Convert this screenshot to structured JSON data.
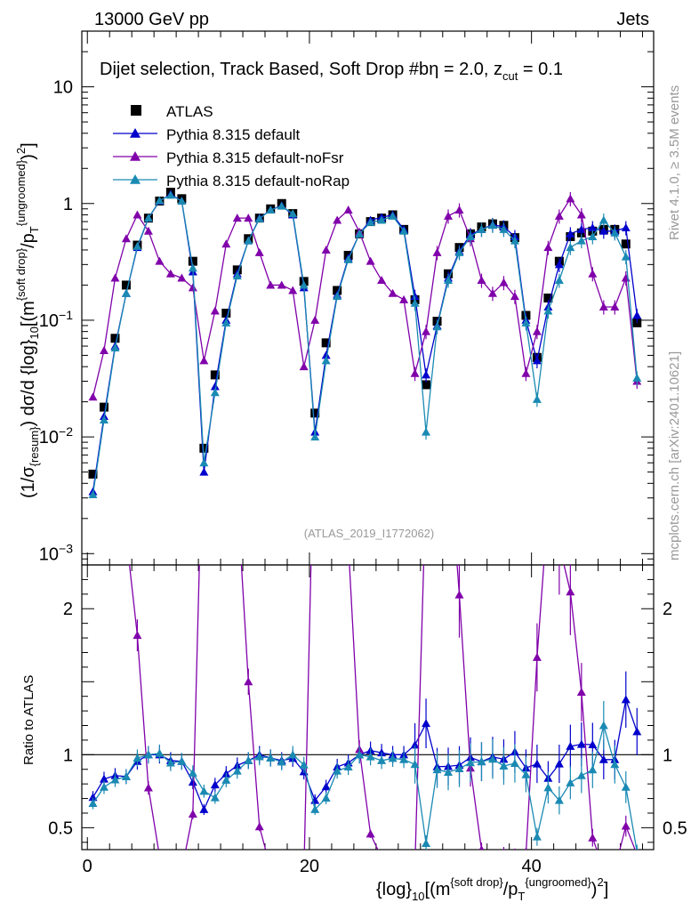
{
  "header": {
    "energy_label": "13000 GeV pp",
    "process_label": "Jets"
  },
  "side_labels": {
    "rivet": "Rivet 4.1.0, ≥ 3.5M events",
    "mcplots": "mcplots.cern.ch [arXiv:2401.10621]"
  },
  "chart_data": {
    "type": "scatter",
    "title": "Dijet selection, Track Based, Soft Drop #b",
    "title_suffix": "η = 2.0, z",
    "title_sub": "cut",
    "title_tail": " = 0.1",
    "analysis_id": "(ATLAS_2019_I1772062)",
    "ylabel_main": "(1/σ_{resum}) dσ/d {log}_{10}[(m^{soft drop}/p_T^{ungroomed})^2]",
    "ylabel_ratio": "Ratio to ATLAS",
    "xlabel": "{log}_{10}[(m^{soft drop}/p_T^{ungroomed})^2]",
    "xlim": [
      -0.5,
      51
    ],
    "ylim_main": [
      0.0008,
      30
    ],
    "ylim_ratio": [
      0.35,
      2.3
    ],
    "x_ticks": [
      "0",
      "20",
      "40"
    ],
    "y_ticks_main": [
      "10^-3",
      "10^-2",
      "10^-1",
      "1",
      "10"
    ],
    "y_ticks_ratio": [
      "0.5",
      "1",
      "2"
    ],
    "x": [
      0.5,
      1.5,
      2.5,
      3.5,
      4.5,
      5.5,
      6.5,
      7.5,
      8.5,
      9.5,
      10.5,
      11.5,
      12.5,
      13.5,
      14.5,
      15.5,
      16.5,
      17.5,
      18.5,
      19.5,
      20.5,
      21.5,
      22.5,
      23.5,
      24.5,
      25.5,
      26.5,
      27.5,
      28.5,
      29.5,
      30.5,
      31.5,
      32.5,
      33.5,
      34.5,
      35.5,
      36.5,
      37.5,
      38.5,
      39.5,
      40.5,
      41.5,
      42.5,
      43.5,
      44.5,
      45.5,
      46.5,
      47.5,
      48.5,
      49.5
    ],
    "series": [
      {
        "name": "ATLAS",
        "color": "#000000",
        "marker": "square",
        "values": [
          0.0048,
          0.018,
          0.07,
          0.2,
          0.44,
          0.75,
          1.05,
          1.25,
          1.1,
          0.32,
          0.008,
          0.034,
          0.115,
          0.27,
          0.5,
          0.75,
          0.9,
          1.0,
          0.82,
          0.215,
          0.016,
          0.064,
          0.18,
          0.36,
          0.55,
          0.7,
          0.75,
          0.8,
          0.6,
          0.15,
          0.028,
          0.098,
          0.25,
          0.42,
          0.55,
          0.63,
          0.67,
          0.65,
          0.51,
          0.11,
          0.048,
          0.155,
          0.32,
          0.52,
          0.56,
          0.58,
          0.6,
          0.6,
          0.45,
          0.095
        ]
      },
      {
        "name": "Pythia 8.315 default",
        "color": "#0000cc",
        "marker": "triangle",
        "values": [
          0.0034,
          0.015,
          0.06,
          0.17,
          0.42,
          0.75,
          1.05,
          1.2,
          1.05,
          0.26,
          0.005,
          0.027,
          0.1,
          0.25,
          0.48,
          0.75,
          0.88,
          0.96,
          0.8,
          0.19,
          0.011,
          0.05,
          0.165,
          0.34,
          0.55,
          0.72,
          0.76,
          0.8,
          0.6,
          0.16,
          0.034,
          0.09,
          0.23,
          0.39,
          0.54,
          0.6,
          0.66,
          0.63,
          0.52,
          0.1,
          0.045,
          0.13,
          0.3,
          0.55,
          0.6,
          0.62,
          0.58,
          0.58,
          0.62,
          0.11
        ]
      },
      {
        "name": "Pythia 8.315 default-noFsr",
        "color": "#8000aa",
        "marker": "triangle",
        "values": [
          0.022,
          0.055,
          0.23,
          0.5,
          0.8,
          0.58,
          0.32,
          0.25,
          0.23,
          0.19,
          0.045,
          0.12,
          0.45,
          0.75,
          0.75,
          0.38,
          0.2,
          0.2,
          0.18,
          0.04,
          0.1,
          0.4,
          0.72,
          0.88,
          0.57,
          0.32,
          0.22,
          0.17,
          0.15,
          0.035,
          0.08,
          0.38,
          0.78,
          0.88,
          0.5,
          0.22,
          0.17,
          0.21,
          0.16,
          0.035,
          0.08,
          0.42,
          0.78,
          1.1,
          0.8,
          0.25,
          0.13,
          0.13,
          0.23,
          0.03
        ]
      },
      {
        "name": "Pythia 8.315 default-noRap",
        "color": "#1a8ab3",
        "marker": "triangle",
        "values": [
          0.0032,
          0.014,
          0.058,
          0.17,
          0.43,
          0.75,
          1.06,
          1.18,
          1.05,
          0.28,
          0.006,
          0.024,
          0.095,
          0.24,
          0.48,
          0.74,
          0.88,
          0.95,
          0.82,
          0.2,
          0.01,
          0.045,
          0.16,
          0.33,
          0.55,
          0.69,
          0.72,
          0.78,
          0.58,
          0.14,
          0.011,
          0.088,
          0.22,
          0.38,
          0.52,
          0.6,
          0.65,
          0.6,
          0.48,
          0.095,
          0.021,
          0.12,
          0.22,
          0.42,
          0.48,
          0.52,
          0.72,
          0.56,
          0.35,
          0.032
        ]
      }
    ]
  }
}
